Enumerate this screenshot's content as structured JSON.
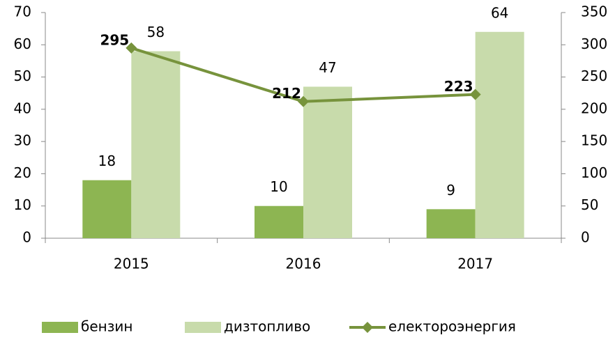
{
  "chart_data": {
    "type": "bar",
    "categories": [
      "2015",
      "2016",
      "2017"
    ],
    "series": [
      {
        "name": "бензин",
        "color": "#8db552",
        "values": [
          18,
          10,
          9
        ]
      },
      {
        "name": "дизтопливо",
        "color": "#c8dbab",
        "values": [
          58,
          47,
          64
        ]
      },
      {
        "name": "електороэнергия",
        "color": "#77933c",
        "values": [
          295,
          212,
          223
        ],
        "axis": "y2",
        "type": "line"
      }
    ],
    "ylim": [
      0,
      70
    ],
    "yticks": [
      0,
      10,
      20,
      30,
      40,
      50,
      60,
      70
    ],
    "y2lim": [
      0,
      350
    ],
    "y2ticks": [
      0,
      50,
      100,
      150,
      200,
      250,
      300,
      350
    ],
    "legend": "bottom"
  }
}
